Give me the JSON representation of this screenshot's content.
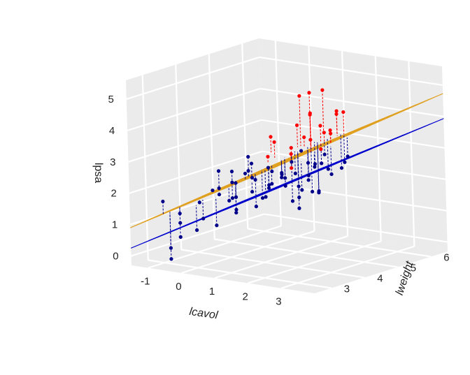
{
  "chart_data": {
    "type": "scatter3d",
    "title": "",
    "xlabel": "lcavol",
    "ylabel": "lweight",
    "zlabel": "lpsa",
    "x_ticks": [
      -1,
      0,
      1,
      2,
      3
    ],
    "y_ticks": [
      3,
      4,
      5,
      6
    ],
    "z_ticks": [
      0,
      1,
      2,
      3,
      4,
      5
    ],
    "x_range": [
      -1.5,
      4
    ],
    "y_range": [
      2.5,
      6.5
    ],
    "z_range": [
      -0.3,
      5.6
    ],
    "background": "#ebebeb",
    "grid_color": "#ffffff",
    "planes": [
      {
        "name": "upper",
        "color": "#e0a020",
        "z_at_origin": 0.9,
        "slope_x": 0.62,
        "slope_y": 0.35
      },
      {
        "name": "lower",
        "color": "#0000cd",
        "z_at_origin": 0.25,
        "slope_x": 0.6,
        "slope_y": 0.32
      }
    ],
    "series": [
      {
        "color": "#ff0000",
        "points": [
          [
            2.6,
            3.6,
            5.4
          ],
          [
            2.8,
            3.7,
            5.5
          ],
          [
            3.1,
            3.8,
            5.6
          ],
          [
            2.4,
            4.1,
            4.6
          ],
          [
            2.9,
            4.4,
            4.7
          ],
          [
            2.2,
            3.9,
            4.3
          ],
          [
            3.3,
            4.0,
            4.8
          ],
          [
            1.9,
            4.6,
            4.4
          ],
          [
            2.5,
            4.3,
            4.2
          ],
          [
            2.7,
            4.8,
            4.5
          ],
          [
            1.6,
            3.7,
            3.9
          ],
          [
            2.1,
            4.2,
            3.8
          ],
          [
            3.0,
            3.5,
            4.1
          ],
          [
            1.4,
            4.0,
            3.6
          ],
          [
            2.3,
            3.6,
            3.5
          ],
          [
            2.6,
            4.5,
            3.9
          ],
          [
            3.4,
            3.7,
            4.4
          ],
          [
            1.8,
            3.4,
            3.4
          ],
          [
            2.0,
            4.9,
            3.7
          ],
          [
            2.8,
            4.0,
            3.6
          ],
          [
            1.5,
            4.4,
            3.3
          ],
          [
            2.4,
            3.5,
            3.1
          ]
        ],
        "fitted": [
          [
            2.6,
            3.6,
            3.8
          ],
          [
            2.8,
            3.7,
            4.0
          ],
          [
            3.1,
            3.8,
            4.2
          ],
          [
            2.4,
            4.1,
            3.6
          ],
          [
            2.9,
            4.4,
            3.9
          ],
          [
            2.2,
            3.9,
            3.6
          ],
          [
            3.3,
            4.0,
            4.2
          ],
          [
            1.9,
            4.6,
            3.3
          ],
          [
            2.5,
            4.3,
            3.7
          ],
          [
            2.7,
            4.8,
            3.8
          ],
          [
            1.6,
            3.7,
            3.4
          ],
          [
            2.1,
            4.2,
            3.5
          ],
          [
            3.0,
            3.5,
            3.7
          ],
          [
            1.4,
            4.0,
            3.1
          ],
          [
            2.3,
            3.6,
            3.4
          ],
          [
            2.6,
            4.5,
            3.6
          ],
          [
            3.4,
            3.7,
            4.0
          ],
          [
            1.8,
            3.4,
            3.2
          ],
          [
            2.0,
            4.9,
            3.4
          ],
          [
            2.8,
            4.0,
            3.8
          ],
          [
            1.5,
            4.4,
            3.0
          ],
          [
            2.4,
            3.5,
            3.5
          ]
        ]
      },
      {
        "color": "#00008b",
        "points": [
          [
            -0.9,
            2.9,
            1.7
          ],
          [
            -0.8,
            3.0,
            0.2
          ],
          [
            -0.9,
            3.1,
            -0.2
          ],
          [
            -0.7,
            3.2,
            0.5
          ],
          [
            -0.8,
            3.3,
            0.9
          ],
          [
            -0.6,
            3.1,
            1.3
          ],
          [
            -0.3,
            3.4,
            1.6
          ],
          [
            0.0,
            3.2,
            1.2
          ],
          [
            0.2,
            3.5,
            1.9
          ],
          [
            0.4,
            3.3,
            2.2
          ],
          [
            0.1,
            3.6,
            2.6
          ],
          [
            0.5,
            3.7,
            1.4
          ],
          [
            0.7,
            3.4,
            2.4
          ],
          [
            0.8,
            3.8,
            3.1
          ],
          [
            0.9,
            3.2,
            2.0
          ],
          [
            1.0,
            3.5,
            2.7
          ],
          [
            1.1,
            3.9,
            1.8
          ],
          [
            1.2,
            3.6,
            2.5
          ],
          [
            1.3,
            3.3,
            2.9
          ],
          [
            1.4,
            3.8,
            2.2
          ],
          [
            1.5,
            3.6,
            2.0
          ],
          [
            1.6,
            4.0,
            2.6
          ],
          [
            1.7,
            3.5,
            3.0
          ],
          [
            1.8,
            3.9,
            2.3
          ],
          [
            1.9,
            3.7,
            2.8
          ],
          [
            2.0,
            4.1,
            1.9
          ],
          [
            2.1,
            3.6,
            2.7
          ],
          [
            2.2,
            4.2,
            3.0
          ],
          [
            2.3,
            3.8,
            2.4
          ],
          [
            2.4,
            4.3,
            2.1
          ],
          [
            2.5,
            3.9,
            2.6
          ],
          [
            2.6,
            4.4,
            2.8
          ],
          [
            2.7,
            4.0,
            2.2
          ],
          [
            0.3,
            3.9,
            1.7
          ],
          [
            0.6,
            4.1,
            2.3
          ],
          [
            1.0,
            4.3,
            2.5
          ],
          [
            1.4,
            4.5,
            2.8
          ],
          [
            1.8,
            4.6,
            2.4
          ],
          [
            2.2,
            4.7,
            3.1
          ],
          [
            2.6,
            4.8,
            2.7
          ],
          [
            0.0,
            3.0,
            0.9
          ],
          [
            0.5,
            3.1,
            1.1
          ],
          [
            1.1,
            3.1,
            1.6
          ],
          [
            1.5,
            3.2,
            2.3
          ],
          [
            2.0,
            3.3,
            2.6
          ],
          [
            2.4,
            3.2,
            2.9
          ],
          [
            2.8,
            3.4,
            2.5
          ],
          [
            3.0,
            3.6,
            3.2
          ],
          [
            3.2,
            3.9,
            2.9
          ],
          [
            3.4,
            4.2,
            3.4
          ],
          [
            -0.2,
            3.7,
            1.9
          ],
          [
            0.2,
            4.0,
            2.1
          ],
          [
            0.8,
            4.4,
            2.0
          ],
          [
            1.2,
            4.8,
            2.3
          ],
          [
            1.6,
            5.0,
            2.6
          ],
          [
            0.6,
            3.5,
            2.7
          ],
          [
            1.3,
            3.4,
            3.1
          ],
          [
            1.9,
            4.3,
            3.3
          ],
          [
            2.3,
            4.5,
            2.9
          ],
          [
            2.9,
            4.6,
            3.0
          ],
          [
            0.9,
            3.9,
            1.5
          ],
          [
            1.7,
            4.2,
            1.7
          ],
          [
            2.1,
            4.4,
            2.0
          ],
          [
            2.5,
            3.6,
            1.8
          ],
          [
            1.0,
            3.0,
            2.0
          ]
        ],
        "fitted": [
          [
            -0.9,
            2.9,
            1.3
          ],
          [
            -0.8,
            3.0,
            1.3
          ],
          [
            -0.9,
            3.1,
            1.3
          ],
          [
            -0.7,
            3.2,
            1.4
          ],
          [
            -0.8,
            3.3,
            1.4
          ],
          [
            -0.6,
            3.1,
            1.5
          ],
          [
            -0.3,
            3.4,
            1.7
          ],
          [
            0.0,
            3.2,
            1.8
          ],
          [
            0.2,
            3.5,
            2.0
          ],
          [
            0.4,
            3.3,
            2.1
          ],
          [
            0.1,
            3.6,
            2.0
          ],
          [
            0.5,
            3.7,
            2.2
          ],
          [
            0.7,
            3.4,
            2.3
          ],
          [
            0.8,
            3.8,
            2.5
          ],
          [
            0.9,
            3.2,
            2.4
          ],
          [
            1.0,
            3.5,
            2.5
          ],
          [
            1.1,
            3.9,
            2.7
          ],
          [
            1.2,
            3.6,
            2.7
          ],
          [
            1.3,
            3.3,
            2.7
          ],
          [
            1.4,
            3.8,
            2.9
          ],
          [
            1.5,
            3.6,
            2.9
          ],
          [
            1.6,
            4.0,
            3.0
          ],
          [
            1.7,
            3.5,
            3.0
          ],
          [
            1.8,
            3.9,
            3.2
          ],
          [
            1.9,
            3.7,
            3.2
          ],
          [
            2.0,
            4.1,
            3.3
          ],
          [
            2.1,
            3.6,
            3.3
          ],
          [
            2.2,
            4.2,
            3.5
          ],
          [
            2.3,
            3.8,
            3.5
          ],
          [
            2.4,
            4.3,
            3.6
          ],
          [
            2.5,
            3.9,
            3.6
          ],
          [
            2.6,
            4.4,
            3.8
          ],
          [
            2.7,
            4.0,
            3.8
          ],
          [
            0.3,
            3.9,
            2.2
          ],
          [
            0.6,
            4.1,
            2.4
          ],
          [
            1.0,
            4.3,
            2.7
          ],
          [
            1.4,
            4.5,
            3.0
          ],
          [
            1.8,
            4.6,
            3.2
          ],
          [
            2.2,
            4.7,
            3.5
          ],
          [
            2.6,
            4.8,
            3.8
          ],
          [
            0.0,
            3.0,
            1.7
          ],
          [
            0.5,
            3.1,
            2.0
          ],
          [
            1.1,
            3.1,
            2.4
          ],
          [
            1.5,
            3.2,
            2.6
          ],
          [
            2.0,
            3.3,
            2.9
          ],
          [
            2.4,
            3.2,
            3.1
          ],
          [
            2.8,
            3.4,
            3.4
          ],
          [
            3.0,
            3.6,
            3.6
          ],
          [
            3.2,
            3.9,
            3.8
          ],
          [
            3.4,
            4.2,
            4.0
          ],
          [
            -0.2,
            3.7,
            1.9
          ],
          [
            0.2,
            4.0,
            2.2
          ],
          [
            0.8,
            4.4,
            2.6
          ],
          [
            1.2,
            4.8,
            3.0
          ],
          [
            1.6,
            5.0,
            3.3
          ],
          [
            0.6,
            3.5,
            2.3
          ],
          [
            1.3,
            3.4,
            2.7
          ],
          [
            1.9,
            4.3,
            3.3
          ],
          [
            2.3,
            4.5,
            3.5
          ],
          [
            2.9,
            4.6,
            3.9
          ],
          [
            0.9,
            3.9,
            2.5
          ],
          [
            1.7,
            4.2,
            3.1
          ],
          [
            2.1,
            4.4,
            3.4
          ],
          [
            2.5,
            3.6,
            3.6
          ],
          [
            1.0,
            3.0,
            2.4
          ]
        ]
      }
    ]
  }
}
